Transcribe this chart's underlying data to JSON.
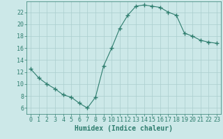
{
  "x": [
    0,
    1,
    2,
    3,
    4,
    5,
    6,
    7,
    8,
    9,
    10,
    11,
    12,
    13,
    14,
    15,
    16,
    17,
    18,
    19,
    20,
    21,
    22,
    23
  ],
  "y": [
    12.5,
    11.0,
    10.0,
    9.2,
    8.2,
    7.8,
    6.8,
    6.0,
    7.8,
    13.0,
    16.0,
    19.3,
    21.5,
    23.0,
    23.2,
    23.0,
    22.8,
    22.0,
    21.5,
    18.5,
    18.0,
    17.3,
    17.0,
    16.8
  ],
  "line_color": "#2e7d6e",
  "marker": "+",
  "marker_size": 4,
  "bg_color": "#cce8e8",
  "grid_color": "#aacece",
  "xlabel": "Humidex (Indice chaleur)",
  "ylim": [
    5,
    23.8
  ],
  "xlim": [
    -0.5,
    23.5
  ],
  "yticks": [
    6,
    8,
    10,
    12,
    14,
    16,
    18,
    20,
    22
  ],
  "xticks": [
    0,
    1,
    2,
    3,
    4,
    5,
    6,
    7,
    8,
    9,
    10,
    11,
    12,
    13,
    14,
    15,
    16,
    17,
    18,
    19,
    20,
    21,
    22,
    23
  ],
  "tick_color": "#2e7d6e",
  "tick_label_color": "#2e7d6e",
  "xlabel_color": "#2e7d6e",
  "xlabel_fontsize": 7,
  "tick_fontsize": 6
}
